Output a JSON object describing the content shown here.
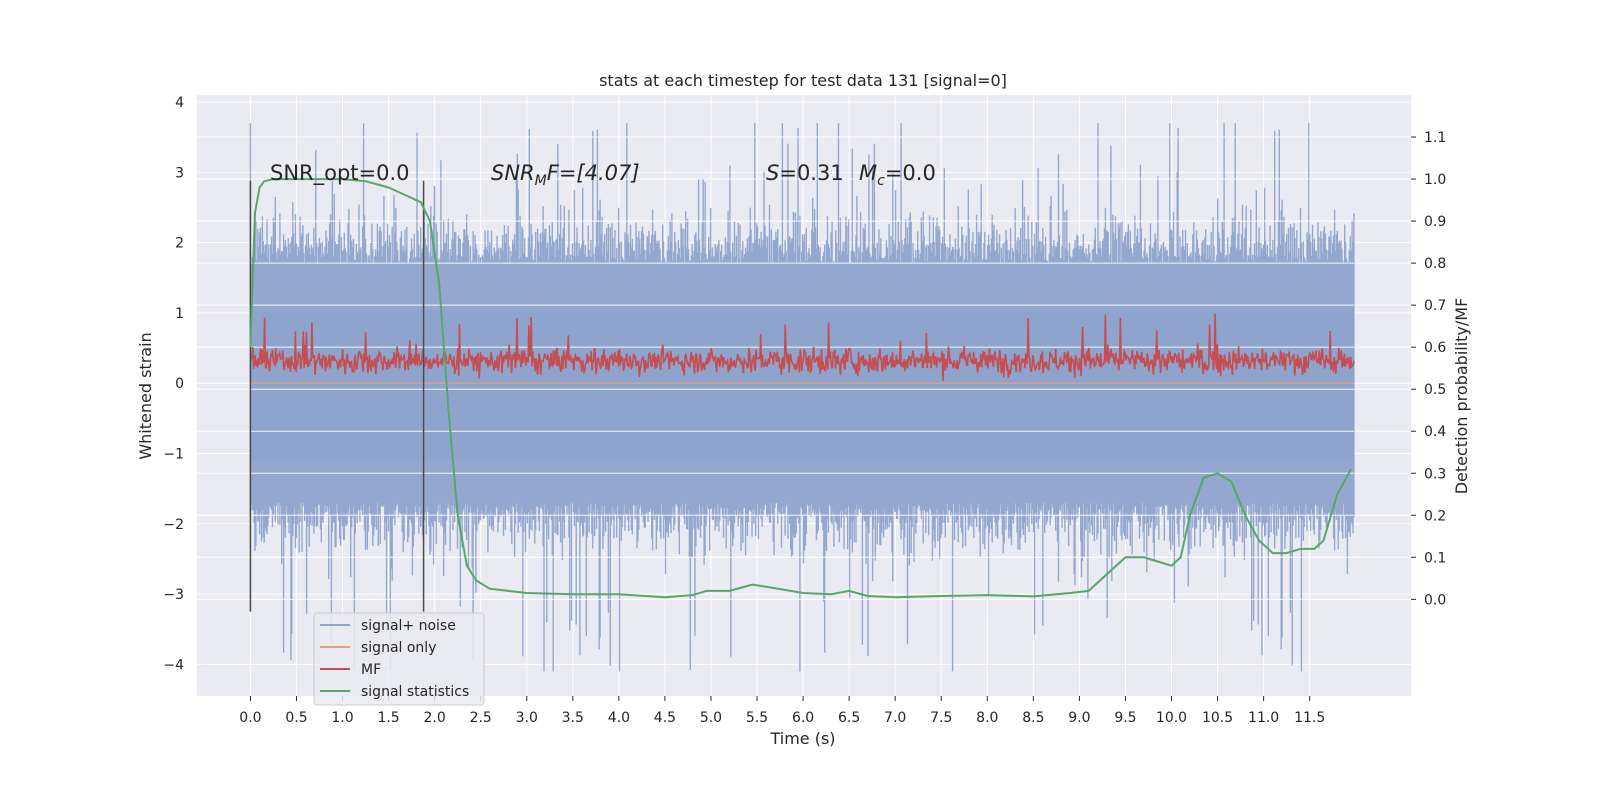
{
  "chart_data": {
    "type": "line",
    "title": "stats at each timestep for test data 131 [signal=0]",
    "xlabel": "Time (s)",
    "ylabel": "Whitened strain",
    "ylabel_right": "Detection probability/MF",
    "xlim": [
      -0.58,
      12.6
    ],
    "ylim": [
      -4.45,
      4.1
    ],
    "ylim_right": [
      -0.23,
      1.2
    ],
    "x_ticks": [
      "0.0",
      "0.5",
      "1.0",
      "1.5",
      "2.0",
      "2.5",
      "3.0",
      "3.5",
      "4.0",
      "4.5",
      "5.0",
      "5.5",
      "6.0",
      "6.5",
      "7.0",
      "7.5",
      "8.0",
      "8.5",
      "9.0",
      "9.5",
      "10.0",
      "10.5",
      "11.0",
      "11.5"
    ],
    "y_ticks": [
      "4",
      "3",
      "2",
      "1",
      "0",
      "−1",
      "−2",
      "−3",
      "−4"
    ],
    "y_ticks_right": [
      "1.1",
      "1.0",
      "0.9",
      "0.8",
      "0.7",
      "0.6",
      "0.5",
      "0.4",
      "0.3",
      "0.2",
      "0.1",
      "0.0"
    ],
    "grid": true,
    "legend_position": "lower-left",
    "annotations": {
      "snr_opt": "SNR_opt=0.0",
      "snr_mf_base": "SNR",
      "snr_mf_sub": "M",
      "snr_mf_rest": "F=[4.07]",
      "s_label": "S",
      "s_value": "=0.31",
      "mc_label": "M",
      "mc_sub": "c",
      "mc_value": "=0.0"
    },
    "vertical_markers": [
      0.0,
      1.88
    ],
    "series": [
      {
        "name": "signal+ noise",
        "color": "#8fa4cc",
        "envelope": {
          "typical_min": -1.7,
          "typical_max": 1.7,
          "extreme_min": -4.1,
          "extreme_max": 3.7,
          "x_range": [
            0.0,
            11.98
          ]
        }
      },
      {
        "name": "signal only",
        "color": "#e8a07e",
        "values_note": "flat at 0"
      },
      {
        "name": "MF",
        "color": "#c44e52",
        "envelope": {
          "typical_min": 0.1,
          "typical_max": 0.55,
          "extreme_min": 0.02,
          "extreme_max": 1.0,
          "x_range": [
            0.0,
            11.98
          ]
        }
      },
      {
        "name": "signal statistics",
        "color": "#55a868",
        "x": [
          0.0,
          0.05,
          0.1,
          0.15,
          0.25,
          0.5,
          1.0,
          1.25,
          1.5,
          1.7,
          1.85,
          1.95,
          2.05,
          2.15,
          2.25,
          2.35,
          2.45,
          2.6,
          2.8,
          3.0,
          3.5,
          4.0,
          4.5,
          4.8,
          4.95,
          5.2,
          5.45,
          5.6,
          6.0,
          6.3,
          6.5,
          6.7,
          7.0,
          7.5,
          8.0,
          8.5,
          8.9,
          9.1,
          9.3,
          9.5,
          9.7,
          9.85,
          10.0,
          10.1,
          10.2,
          10.35,
          10.5,
          10.65,
          10.8,
          10.95,
          11.1,
          11.25,
          11.4,
          11.55,
          11.65,
          11.8,
          11.95
        ],
        "y": [
          0.6,
          0.92,
          0.98,
          0.995,
          1.0,
          1.0,
          1.0,
          0.995,
          0.98,
          0.96,
          0.945,
          0.9,
          0.75,
          0.45,
          0.2,
          0.08,
          0.045,
          0.025,
          0.02,
          0.015,
          0.012,
          0.012,
          0.005,
          0.01,
          0.02,
          0.02,
          0.035,
          0.03,
          0.015,
          0.012,
          0.02,
          0.008,
          0.005,
          0.008,
          0.01,
          0.007,
          0.015,
          0.02,
          0.06,
          0.1,
          0.1,
          0.09,
          0.08,
          0.1,
          0.2,
          0.29,
          0.3,
          0.28,
          0.2,
          0.14,
          0.11,
          0.11,
          0.12,
          0.12,
          0.14,
          0.25,
          0.31
        ]
      }
    ]
  }
}
